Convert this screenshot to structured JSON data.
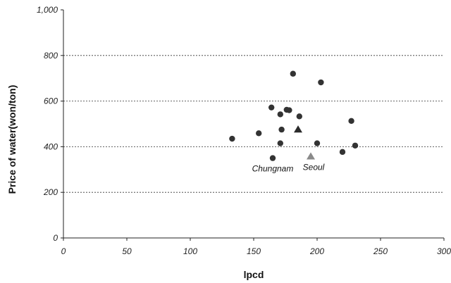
{
  "chart_data": {
    "type": "scatter",
    "xlabel": "lpcd",
    "ylabel": "Price of water(won/ton)",
    "xlim": [
      0,
      300
    ],
    "ylim": [
      0,
      1000
    ],
    "x_ticks": [
      0,
      50,
      100,
      150,
      200,
      250,
      300
    ],
    "y_ticks": [
      0,
      200,
      400,
      600,
      800,
      1000
    ],
    "x_tick_labels": [
      "0",
      "50",
      "100",
      "150",
      "200",
      "250",
      "300"
    ],
    "y_tick_labels": [
      "0",
      "200",
      "400",
      "600",
      "800",
      "1,000"
    ],
    "grid": "horizontal-dashed",
    "series": [
      {
        "marker": "circle",
        "color": "#333333",
        "points": [
          {
            "x": 133,
            "y": 435
          },
          {
            "x": 154,
            "y": 459
          },
          {
            "x": 164,
            "y": 572
          },
          {
            "x": 165,
            "y": 350
          },
          {
            "x": 171,
            "y": 542
          },
          {
            "x": 171,
            "y": 415
          },
          {
            "x": 172,
            "y": 475
          },
          {
            "x": 176,
            "y": 562
          },
          {
            "x": 178,
            "y": 560
          },
          {
            "x": 181,
            "y": 720
          },
          {
            "x": 186,
            "y": 533
          },
          {
            "x": 200,
            "y": 415
          },
          {
            "x": 203,
            "y": 682
          },
          {
            "x": 220,
            "y": 377
          },
          {
            "x": 227,
            "y": 513
          },
          {
            "x": 230,
            "y": 405
          }
        ]
      },
      {
        "marker": "triangle",
        "color": "#2b2b2b",
        "points": [
          {
            "x": 185,
            "y": 475
          }
        ]
      },
      {
        "marker": "triangle",
        "color": "#8a8a8a",
        "points": [
          {
            "x": 195,
            "y": 357
          }
        ]
      }
    ],
    "annotations": [
      {
        "text": "Chungnam",
        "x": 165,
        "y": 350
      },
      {
        "text": "Seoul",
        "x": 195,
        "y": 357
      }
    ]
  }
}
